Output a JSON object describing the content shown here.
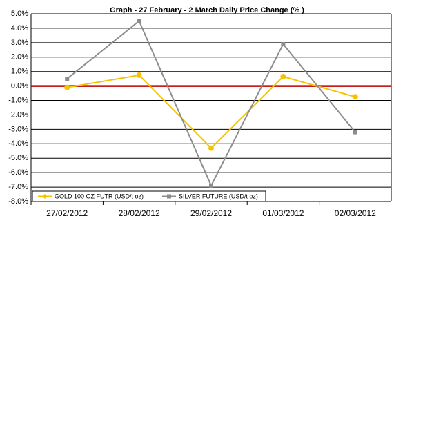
{
  "chart_data": {
    "type": "line",
    "title": "Graph -  27 February - 2 March Daily Price Change (% )",
    "categories": [
      "27/02/2012",
      "28/02/2012",
      "29/02/2012",
      "01/03/2012",
      "02/03/2012"
    ],
    "series": [
      {
        "name": "GOLD 100 OZ FUTR (USD/t oz)",
        "color": "#f5c400",
        "marker": "circle",
        "values": [
          -0.1,
          0.75,
          -4.3,
          0.65,
          -0.75
        ]
      },
      {
        "name": "SILVER FUTURE (USD/t oz)",
        "color": "#8c8c8c",
        "marker": "square",
        "values": [
          0.5,
          4.5,
          -6.9,
          2.9,
          -3.2
        ]
      }
    ],
    "ylim": [
      -8,
      5
    ],
    "yticks": [
      {
        "value": 5,
        "label": "5.0%"
      },
      {
        "value": 4,
        "label": "4.0%"
      },
      {
        "value": 3,
        "label": "3.0%"
      },
      {
        "value": 2,
        "label": "2.0%"
      },
      {
        "value": 1,
        "label": "1.0%"
      },
      {
        "value": 0,
        "label": "0.0%"
      },
      {
        "value": -1,
        "label": "-1.0%"
      },
      {
        "value": -2,
        "label": "-2.0%"
      },
      {
        "value": -3,
        "label": "-3.0%"
      },
      {
        "value": -4,
        "label": "-4.0%"
      },
      {
        "value": -5,
        "label": "-5.0%"
      },
      {
        "value": -6,
        "label": "-6.0%"
      },
      {
        "value": -7,
        "label": "-7.0%"
      },
      {
        "value": -8,
        "label": "-8.0%"
      }
    ],
    "grid": true,
    "zero_line_color": "#c00000",
    "legend": "lower left"
  }
}
